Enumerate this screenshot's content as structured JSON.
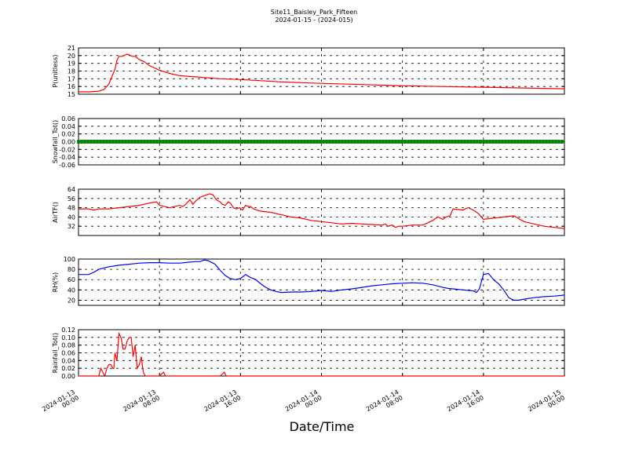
{
  "figure": {
    "title": "Site11_Baisley_Park_Fifteen",
    "subtitle": "2024-01-15 - (2024-015)",
    "xlabel": "Date/Time"
  },
  "chart_data": [
    {
      "type": "line",
      "ylabel": "P(unitless)",
      "ylim": [
        15,
        21
      ],
      "yticks": [
        "15",
        "16",
        "17",
        "18",
        "19",
        "20",
        "21"
      ],
      "grid": true,
      "series": [
        {
          "color": "#ff0000",
          "x": [
            0,
            1,
            2,
            2.5,
            3,
            3.3,
            3.6,
            3.8,
            4,
            4.3,
            4.8,
            5,
            5.3,
            5.6,
            6,
            6.5,
            7,
            8,
            9,
            10,
            12,
            14,
            16,
            18,
            20,
            22,
            24,
            28,
            32,
            36,
            40,
            44,
            48
          ],
          "y": [
            15.3,
            15.3,
            15.4,
            15.6,
            16.3,
            17.3,
            18.2,
            19.4,
            19.9,
            19.9,
            20.2,
            20.1,
            19.9,
            19.9,
            19.5,
            19.2,
            18.7,
            18.1,
            17.7,
            17.4,
            17.2,
            17.0,
            16.9,
            16.75,
            16.6,
            16.5,
            16.4,
            16.25,
            16.1,
            16.0,
            15.9,
            15.8,
            15.7
          ]
        }
      ]
    },
    {
      "type": "line",
      "ylabel": "Snowfall_Tot()",
      "ylim": [
        -0.06,
        0.06
      ],
      "yticks": [
        "-0.06",
        "-0.04",
        "-0.02",
        "0.00",
        "0.02",
        "0.04",
        "0.06"
      ],
      "grid": true,
      "series": [
        {
          "color": "#008000",
          "markers": true,
          "x": [
            0,
            48
          ],
          "y": [
            0,
            0
          ]
        }
      ]
    },
    {
      "type": "line",
      "ylabel": "AirTF()",
      "ylim": [
        24,
        64
      ],
      "yticks": [
        "32",
        "40",
        "48",
        "56",
        "64"
      ],
      "grid": true,
      "series": [
        {
          "color": "#ff0000",
          "x": [
            0,
            1,
            1.5,
            2,
            3,
            4,
            5,
            6,
            7,
            7.7,
            8,
            8.5,
            9,
            9.5,
            10,
            10.3,
            10.6,
            11,
            11.3,
            11.6,
            12,
            12.6,
            13,
            13.3,
            13.6,
            14,
            14.2,
            14.5,
            14.8,
            15,
            15.3,
            15.6,
            15.9,
            16.2,
            16.5,
            16.8,
            17,
            17.3,
            17.6,
            18,
            19,
            20,
            21,
            22,
            23,
            24,
            25,
            26,
            27,
            28,
            29,
            30,
            30.3,
            30.6,
            31,
            31.3,
            31.6,
            32,
            33,
            34,
            34.5,
            35,
            35.5,
            36,
            36.3,
            36.7,
            37,
            38,
            38.2,
            38.5,
            39,
            39.5,
            40,
            41,
            42,
            43,
            44,
            45,
            46,
            47,
            48
          ],
          "y": [
            47,
            47,
            46,
            47,
            47,
            48,
            49,
            50,
            52,
            53,
            50,
            49,
            48,
            49,
            50,
            49,
            51,
            55,
            51,
            54,
            57,
            59,
            60,
            59,
            55,
            53,
            51,
            50,
            53,
            52,
            48,
            47,
            48,
            46,
            50,
            49,
            49,
            47,
            46,
            45,
            44,
            42,
            40,
            39,
            37,
            36,
            35,
            34,
            34.5,
            34,
            33.5,
            33,
            34,
            32,
            33,
            31,
            32,
            32,
            33,
            33,
            35,
            37,
            40,
            38,
            40,
            41,
            47,
            46,
            47,
            48,
            46,
            43,
            38,
            39,
            40,
            41,
            36,
            34,
            32,
            31,
            30
          ]
        }
      ]
    },
    {
      "type": "line",
      "ylabel": "RH(%)",
      "ylim": [
        10,
        100
      ],
      "yticks": [
        "20",
        "40",
        "60",
        "80",
        "100"
      ],
      "grid": true,
      "series": [
        {
          "color": "#0000ff",
          "x": [
            0,
            1,
            1.5,
            2,
            3,
            4,
            5,
            6,
            7,
            8,
            9,
            10,
            11,
            11.5,
            12,
            12.4,
            12.8,
            13,
            13.5,
            14,
            14.5,
            15,
            15.5,
            16,
            16.5,
            17,
            17.5,
            18,
            18.5,
            19,
            19.5,
            20,
            21,
            22,
            23,
            24,
            25,
            26,
            27,
            28,
            29,
            30,
            31,
            32,
            33,
            34,
            35,
            36,
            36.5,
            37,
            38,
            39,
            39.3,
            39.6,
            40,
            40.5,
            41,
            41.5,
            42,
            42.5,
            43,
            43.5,
            44,
            45,
            46,
            47,
            48
          ],
          "y": [
            70,
            70,
            74,
            80,
            85,
            88,
            90,
            92,
            93,
            93,
            92,
            92,
            94,
            95,
            95,
            98,
            97,
            95,
            90,
            78,
            68,
            62,
            60,
            62,
            70,
            64,
            60,
            52,
            45,
            40,
            37,
            35,
            36,
            36,
            37,
            39,
            37,
            40,
            42,
            45,
            48,
            50,
            52,
            53,
            54,
            53,
            50,
            45,
            43,
            42,
            40,
            38,
            35,
            42,
            70,
            72,
            60,
            52,
            40,
            25,
            20,
            20,
            22,
            25,
            27,
            28,
            30
          ]
        }
      ]
    },
    {
      "type": "line",
      "ylabel": "Rainfall_Tot()",
      "ylim": [
        0,
        0.12
      ],
      "yticks": [
        "0.00",
        "0.02",
        "0.04",
        "0.06",
        "0.08",
        "0.10",
        "0.12"
      ],
      "grid": true,
      "series": [
        {
          "color": "#ff0000",
          "x": [
            0,
            1,
            1.5,
            1.8,
            2,
            2.2,
            2.4,
            2.6,
            2.8,
            3,
            3.2,
            3.4,
            3.5,
            3.6,
            3.8,
            4,
            4.2,
            4.4,
            4.6,
            4.8,
            5,
            5.2,
            5.4,
            5.6,
            5.8,
            6,
            6.2,
            6.4,
            6.6,
            7,
            8,
            8.4,
            8.6,
            9,
            10,
            12,
            14,
            14.4,
            14.6,
            15,
            20,
            30,
            40,
            48
          ],
          "y": [
            0,
            0,
            0,
            0,
            0,
            0.02,
            0.01,
            0,
            0.02,
            0.03,
            0.03,
            0.02,
            0.02,
            0.06,
            0.04,
            0.11,
            0.1,
            0.07,
            0.07,
            0.09,
            0.1,
            0.1,
            0.05,
            0.08,
            0.02,
            0.03,
            0.05,
            0.01,
            0,
            0,
            0,
            0.01,
            0,
            0,
            0,
            0,
            0,
            0.01,
            0,
            0,
            0,
            0,
            0,
            0
          ]
        }
      ]
    }
  ],
  "x_axis": {
    "xlim": [
      0,
      48
    ],
    "ticks": [
      {
        "x": 0,
        "date": "2024-01-13",
        "time": "00:00"
      },
      {
        "x": 8,
        "date": "2024-01-13",
        "time": "08:00"
      },
      {
        "x": 16,
        "date": "2024-01-13",
        "time": "16:00"
      },
      {
        "x": 24,
        "date": "2024-01-14",
        "time": "00:00"
      },
      {
        "x": 32,
        "date": "2024-01-14",
        "time": "08:00"
      },
      {
        "x": 40,
        "date": "2024-01-14",
        "time": "16:00"
      },
      {
        "x": 48,
        "date": "2024-01-15",
        "time": "00:00"
      }
    ]
  }
}
